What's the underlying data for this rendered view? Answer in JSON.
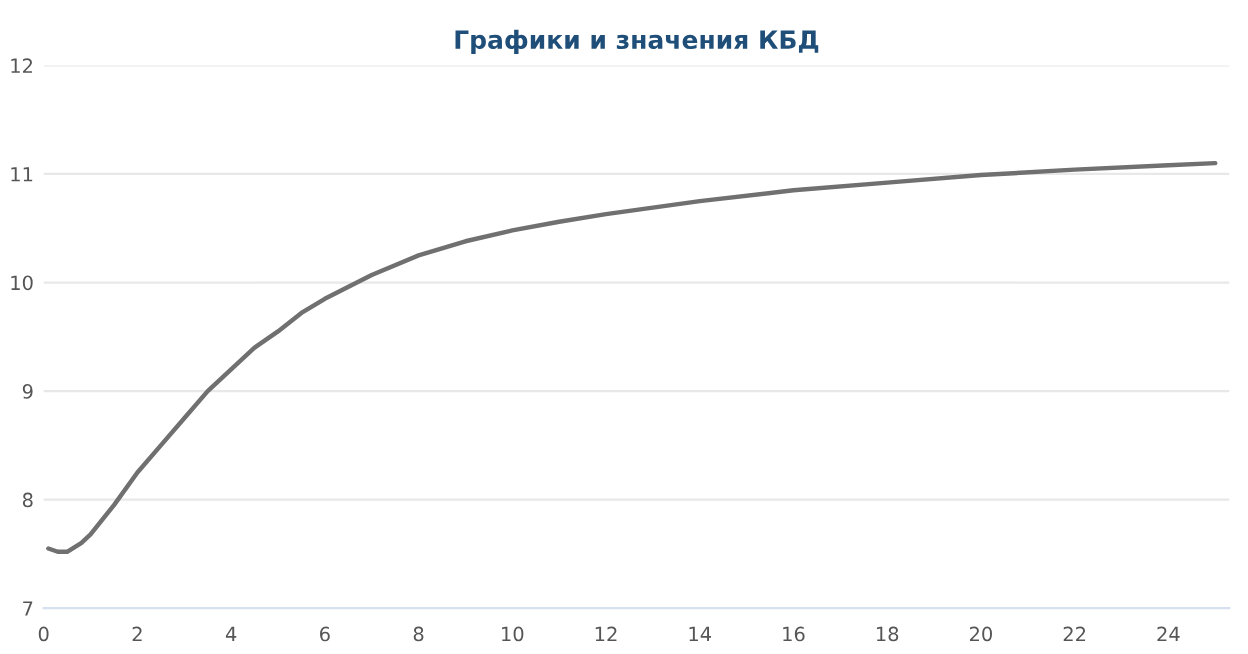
{
  "chart_data": {
    "type": "line",
    "title": "Графики и значения КБД",
    "x": [
      0.1,
      0.3,
      0.5,
      0.8,
      1,
      1.5,
      2,
      2.5,
      3,
      3.5,
      4,
      4.5,
      5,
      5.5,
      6,
      7,
      8,
      9,
      10,
      11,
      12,
      14,
      16,
      18,
      20,
      22,
      24,
      25
    ],
    "series": [
      {
        "color": "#707070",
        "values": [
          7.55,
          7.52,
          7.52,
          7.6,
          7.68,
          7.95,
          8.25,
          8.5,
          8.75,
          9.0,
          9.2,
          9.4,
          9.55,
          9.72,
          9.85,
          10.07,
          10.25,
          10.38,
          10.48,
          10.56,
          10.63,
          10.75,
          10.85,
          10.92,
          10.99,
          11.04,
          11.08,
          11.1
        ]
      }
    ],
    "xlim": [
      0,
      25.3
    ],
    "ylim": [
      7,
      12
    ],
    "xticks": [
      0,
      2,
      4,
      6,
      8,
      10,
      12,
      14,
      16,
      18,
      20,
      22,
      24
    ],
    "yticks": [
      7,
      8,
      9,
      10,
      11,
      12
    ],
    "grid": "y",
    "legend": false
  }
}
